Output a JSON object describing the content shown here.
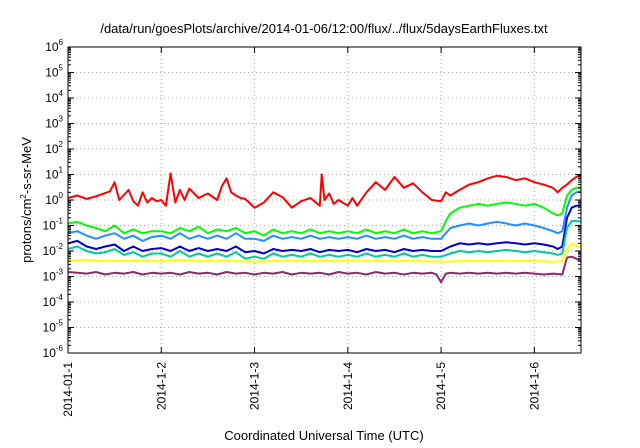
{
  "chart_data": {
    "type": "line",
    "title": "/data/run/goesPlots/archive/2014-01-06/12:00/flux/../flux/5daysEarthFluxes.txt",
    "xlabel": "Coordinated Universal Time (UTC)",
    "ylabel": "protons/cm²-s-sr-MeV",
    "ylabel_parts": {
      "pre": "protons/cm",
      "sup": "2",
      "post": "-s-sr-MeV"
    },
    "yscale": "log",
    "ylim_exp": [
      -6,
      6
    ],
    "ylim": [
      1e-06,
      1000000
    ],
    "y_tick_base": "10",
    "y_ticks_exp": [
      "-6",
      "-5",
      "-4",
      "-3",
      "-2",
      "-1",
      "0",
      "1",
      "2",
      "3",
      "4",
      "5",
      "6"
    ],
    "x_range_days": [
      0,
      5.5
    ],
    "x_ticks": [
      {
        "day": 0,
        "label": "2014-01-1"
      },
      {
        "day": 1,
        "label": "2014-1-2"
      },
      {
        "day": 2,
        "label": "2014-1-3"
      },
      {
        "day": 3,
        "label": "2014-1-4"
      },
      {
        "day": 4,
        "label": "2014-1-5"
      },
      {
        "day": 5,
        "label": "2014-1-6"
      }
    ],
    "grid": true,
    "legend": "none",
    "series": [
      {
        "color": "#ff0000",
        "x": [
          0,
          0.1,
          0.2,
          0.3,
          0.45,
          0.5,
          0.55,
          0.65,
          0.7,
          0.75,
          0.8,
          0.85,
          0.9,
          0.95,
          1.0,
          1.05,
          1.1,
          1.15,
          1.2,
          1.25,
          1.3,
          1.4,
          1.5,
          1.6,
          1.65,
          1.7,
          1.75,
          1.8,
          1.85,
          1.9,
          2.0,
          2.1,
          2.2,
          2.3,
          2.4,
          2.5,
          2.6,
          2.7,
          2.72,
          2.75,
          2.8,
          2.85,
          2.9,
          3.0,
          3.05,
          3.1,
          3.2,
          3.3,
          3.4,
          3.5,
          3.6,
          3.7,
          3.8,
          3.9,
          4.0,
          4.05,
          4.1,
          4.2,
          4.3,
          4.4,
          4.5,
          4.6,
          4.7,
          4.8,
          4.9,
          5.0,
          5.1,
          5.2,
          5.25,
          5.3,
          5.35,
          5.4,
          5.45,
          5.5
        ],
        "y": [
          1.2,
          1.5,
          1.1,
          1.4,
          2.2,
          5.0,
          1.0,
          2.5,
          0.9,
          0.6,
          2.0,
          0.8,
          1.2,
          0.9,
          1.0,
          0.6,
          11.0,
          0.8,
          2.5,
          1.0,
          2.8,
          1.2,
          1.8,
          1.0,
          3.5,
          7.0,
          2.0,
          1.5,
          1.2,
          1.1,
          0.5,
          0.8,
          2.0,
          1.3,
          0.5,
          0.9,
          1.2,
          0.6,
          10.0,
          1.0,
          1.8,
          0.7,
          1.0,
          0.6,
          1.2,
          0.6,
          2.0,
          5.0,
          2.5,
          8.0,
          3.0,
          4.5,
          2.0,
          1.0,
          0.9,
          2.0,
          1.5,
          2.5,
          4.0,
          5.0,
          7.0,
          9.0,
          8.0,
          6.0,
          7.0,
          5.0,
          4.0,
          3.0,
          2.0,
          3.0,
          4.0,
          6.0,
          8.0,
          10.0
        ]
      },
      {
        "color": "#00ff00",
        "x": [
          0,
          0.1,
          0.2,
          0.3,
          0.4,
          0.5,
          0.6,
          0.7,
          0.8,
          0.9,
          1.0,
          1.1,
          1.2,
          1.3,
          1.4,
          1.5,
          1.6,
          1.7,
          1.8,
          1.9,
          2.0,
          2.1,
          2.2,
          2.3,
          2.4,
          2.5,
          2.6,
          2.7,
          2.8,
          2.9,
          3.0,
          3.1,
          3.2,
          3.3,
          3.4,
          3.5,
          3.6,
          3.7,
          3.8,
          3.9,
          4.0,
          4.05,
          4.1,
          4.2,
          4.3,
          4.4,
          4.5,
          4.6,
          4.7,
          4.8,
          4.9,
          5.0,
          5.1,
          5.2,
          5.25,
          5.3,
          5.35,
          5.4,
          5.45,
          5.5
        ],
        "y": [
          0.12,
          0.14,
          0.1,
          0.08,
          0.06,
          0.1,
          0.05,
          0.07,
          0.05,
          0.06,
          0.06,
          0.05,
          0.08,
          0.06,
          0.09,
          0.05,
          0.07,
          0.06,
          0.08,
          0.05,
          0.06,
          0.04,
          0.07,
          0.05,
          0.06,
          0.05,
          0.07,
          0.05,
          0.06,
          0.05,
          0.06,
          0.05,
          0.07,
          0.05,
          0.06,
          0.05,
          0.07,
          0.05,
          0.06,
          0.05,
          0.06,
          0.15,
          0.3,
          0.5,
          0.6,
          0.7,
          0.6,
          0.7,
          0.8,
          0.7,
          0.6,
          0.7,
          0.5,
          0.3,
          0.25,
          0.3,
          1.5,
          2.5,
          3.0,
          3.0
        ]
      },
      {
        "color": "#1e90ff",
        "x": [
          0,
          0.1,
          0.2,
          0.3,
          0.4,
          0.5,
          0.6,
          0.7,
          0.8,
          0.9,
          1.0,
          1.1,
          1.2,
          1.3,
          1.4,
          1.5,
          1.6,
          1.7,
          1.8,
          1.9,
          2.0,
          2.1,
          2.2,
          2.3,
          2.4,
          2.5,
          2.6,
          2.7,
          2.8,
          2.9,
          3.0,
          3.1,
          3.2,
          3.3,
          3.4,
          3.5,
          3.6,
          3.7,
          3.8,
          3.9,
          4.0,
          4.05,
          4.1,
          4.2,
          4.3,
          4.4,
          4.5,
          4.6,
          4.7,
          4.8,
          4.9,
          5.0,
          5.1,
          5.2,
          5.25,
          5.3,
          5.35,
          5.4,
          5.45,
          5.5
        ],
        "y": [
          0.05,
          0.06,
          0.04,
          0.03,
          0.04,
          0.05,
          0.03,
          0.04,
          0.025,
          0.035,
          0.04,
          0.03,
          0.05,
          0.03,
          0.04,
          0.03,
          0.04,
          0.03,
          0.05,
          0.03,
          0.03,
          0.025,
          0.04,
          0.03,
          0.035,
          0.03,
          0.04,
          0.03,
          0.035,
          0.03,
          0.035,
          0.03,
          0.04,
          0.03,
          0.035,
          0.03,
          0.04,
          0.03,
          0.035,
          0.03,
          0.03,
          0.05,
          0.08,
          0.1,
          0.12,
          0.1,
          0.12,
          0.14,
          0.12,
          0.1,
          0.12,
          0.1,
          0.08,
          0.06,
          0.05,
          0.06,
          0.5,
          1.5,
          2.0,
          2.2
        ]
      },
      {
        "color": "#0000d0",
        "x": [
          0,
          0.1,
          0.2,
          0.3,
          0.4,
          0.5,
          0.6,
          0.7,
          0.8,
          0.9,
          1.0,
          1.1,
          1.2,
          1.3,
          1.4,
          1.5,
          1.6,
          1.7,
          1.8,
          1.9,
          2.0,
          2.1,
          2.2,
          2.3,
          2.4,
          2.5,
          2.6,
          2.7,
          2.8,
          2.9,
          3.0,
          3.1,
          3.2,
          3.3,
          3.4,
          3.5,
          3.6,
          3.7,
          3.8,
          3.9,
          4.0,
          4.1,
          4.2,
          4.3,
          4.4,
          4.5,
          4.6,
          4.7,
          4.8,
          4.9,
          5.0,
          5.1,
          5.2,
          5.25,
          5.3,
          5.35,
          5.4,
          5.45,
          5.5
        ],
        "y": [
          0.02,
          0.025,
          0.015,
          0.012,
          0.015,
          0.018,
          0.01,
          0.015,
          0.01,
          0.012,
          0.013,
          0.01,
          0.015,
          0.01,
          0.013,
          0.01,
          0.012,
          0.01,
          0.015,
          0.009,
          0.01,
          0.008,
          0.012,
          0.01,
          0.011,
          0.01,
          0.012,
          0.009,
          0.011,
          0.01,
          0.011,
          0.009,
          0.012,
          0.01,
          0.011,
          0.009,
          0.012,
          0.01,
          0.011,
          0.01,
          0.01,
          0.015,
          0.02,
          0.018,
          0.02,
          0.018,
          0.02,
          0.022,
          0.02,
          0.018,
          0.02,
          0.018,
          0.015,
          0.012,
          0.015,
          0.2,
          0.5,
          0.6,
          0.6
        ]
      },
      {
        "color": "#00c8a0",
        "x": [
          0,
          0.1,
          0.2,
          0.3,
          0.4,
          0.5,
          0.6,
          0.7,
          0.8,
          0.9,
          1.0,
          1.1,
          1.2,
          1.3,
          1.4,
          1.5,
          1.6,
          1.7,
          1.8,
          1.9,
          2.0,
          2.1,
          2.2,
          2.3,
          2.4,
          2.5,
          2.6,
          2.7,
          2.8,
          2.9,
          3.0,
          3.1,
          3.2,
          3.3,
          3.4,
          3.5,
          3.6,
          3.7,
          3.8,
          3.9,
          4.0,
          4.1,
          4.2,
          4.3,
          4.4,
          4.5,
          4.6,
          4.7,
          4.8,
          4.9,
          5.0,
          5.1,
          5.2,
          5.25,
          5.3,
          5.35,
          5.4,
          5.45,
          5.5
        ],
        "y": [
          0.012,
          0.015,
          0.01,
          0.008,
          0.009,
          0.012,
          0.007,
          0.009,
          0.006,
          0.008,
          0.008,
          0.006,
          0.01,
          0.006,
          0.008,
          0.006,
          0.008,
          0.006,
          0.009,
          0.005,
          0.006,
          0.005,
          0.008,
          0.006,
          0.007,
          0.006,
          0.008,
          0.006,
          0.007,
          0.006,
          0.007,
          0.006,
          0.008,
          0.006,
          0.007,
          0.006,
          0.008,
          0.006,
          0.007,
          0.006,
          0.006,
          0.008,
          0.01,
          0.009,
          0.01,
          0.009,
          0.01,
          0.011,
          0.01,
          0.009,
          0.01,
          0.009,
          0.008,
          0.007,
          0.008,
          0.08,
          0.15,
          0.15,
          0.14
        ]
      },
      {
        "color": "#ffff00",
        "x": [
          0,
          0.2,
          0.4,
          0.6,
          0.8,
          1.0,
          1.2,
          1.4,
          1.6,
          1.8,
          2.0,
          2.2,
          2.4,
          2.6,
          2.8,
          3.0,
          3.2,
          3.4,
          3.6,
          3.8,
          4.0,
          4.2,
          4.4,
          4.6,
          4.8,
          5.0,
          5.2,
          5.3,
          5.35,
          5.4,
          5.45,
          5.5
        ],
        "y": [
          0.004,
          0.0045,
          0.004,
          0.0042,
          0.004,
          0.004,
          0.0045,
          0.004,
          0.0042,
          0.004,
          0.0038,
          0.004,
          0.0042,
          0.004,
          0.0041,
          0.004,
          0.0042,
          0.004,
          0.0041,
          0.004,
          0.0038,
          0.004,
          0.0042,
          0.004,
          0.0042,
          0.004,
          0.0038,
          0.004,
          0.012,
          0.02,
          0.015,
          0.014
        ]
      },
      {
        "color": "#8b2a6b",
        "x": [
          0,
          0.1,
          0.2,
          0.3,
          0.4,
          0.5,
          0.6,
          0.7,
          0.8,
          0.9,
          1.0,
          1.1,
          1.2,
          1.3,
          1.4,
          1.5,
          1.6,
          1.7,
          1.8,
          1.9,
          2.0,
          2.1,
          2.2,
          2.3,
          2.4,
          2.5,
          2.6,
          2.7,
          2.8,
          2.9,
          3.0,
          3.1,
          3.2,
          3.3,
          3.4,
          3.5,
          3.6,
          3.7,
          3.8,
          3.9,
          3.95,
          4.0,
          4.05,
          4.1,
          4.2,
          4.3,
          4.4,
          4.5,
          4.6,
          4.7,
          4.8,
          4.9,
          5.0,
          5.1,
          5.2,
          5.3,
          5.35,
          5.4,
          5.45,
          5.5
        ],
        "y": [
          0.0015,
          0.0014,
          0.0013,
          0.0015,
          0.0012,
          0.0014,
          0.0013,
          0.0015,
          0.0012,
          0.0014,
          0.0013,
          0.0014,
          0.0012,
          0.0015,
          0.0013,
          0.0014,
          0.0012,
          0.0015,
          0.0013,
          0.0014,
          0.0012,
          0.0014,
          0.0013,
          0.0015,
          0.0012,
          0.0014,
          0.0013,
          0.0014,
          0.0012,
          0.0015,
          0.0013,
          0.0014,
          0.0012,
          0.0015,
          0.0013,
          0.0014,
          0.0012,
          0.0014,
          0.0013,
          0.0014,
          0.0012,
          0.0006,
          0.0013,
          0.0014,
          0.0013,
          0.0014,
          0.0013,
          0.0014,
          0.0013,
          0.0014,
          0.0013,
          0.0014,
          0.0013,
          0.0012,
          0.0013,
          0.0012,
          0.0055,
          0.006,
          0.005,
          0.004
        ]
      }
    ]
  }
}
